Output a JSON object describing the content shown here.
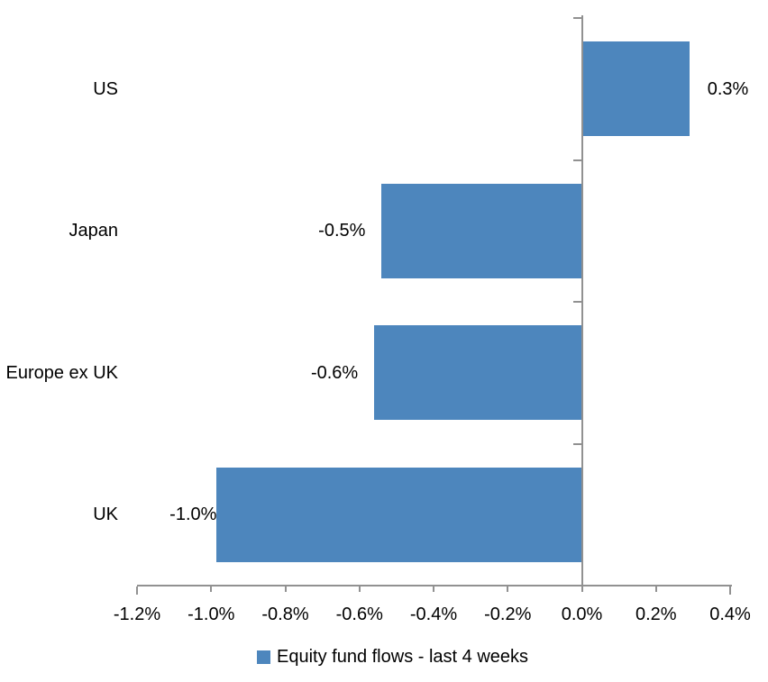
{
  "chart_data": {
    "type": "bar",
    "orientation": "horizontal",
    "title": "",
    "legend": [
      "Equity fund flows - last 4 weeks"
    ],
    "legend_position": "bottom-center",
    "categories": [
      "US",
      "Japan",
      "Europe ex UK",
      "UK"
    ],
    "points": [
      {
        "category": "US",
        "label": "0.3%",
        "value": 0.29,
        "label_gap": 20
      },
      {
        "category": "Japan",
        "label": "-0.5%",
        "value": -0.54,
        "label_gap": 18
      },
      {
        "category": "Europe ex UK",
        "label": "-0.6%",
        "value": -0.56,
        "label_gap": 18
      },
      {
        "category": "UK",
        "label": "-1.0%",
        "value": -0.985,
        "label_gap": 0
      }
    ],
    "xlim": [
      -1.2,
      0.4
    ],
    "x_tick_values": [
      -1.2,
      -1.0,
      -0.8,
      -0.6,
      -0.4,
      -0.2,
      0.0,
      0.2,
      0.4
    ],
    "x_tick_labels": [
      "-1.2%",
      "-1.0%",
      "-0.8%",
      "-0.6%",
      "-0.4%",
      "-0.2%",
      "0.0%",
      "0.2%",
      "0.4%"
    ],
    "grid": false,
    "background": "#ffffff",
    "colors": {
      "bar": "#4d86bd",
      "axis": "#919191",
      "text": "#000000"
    }
  }
}
